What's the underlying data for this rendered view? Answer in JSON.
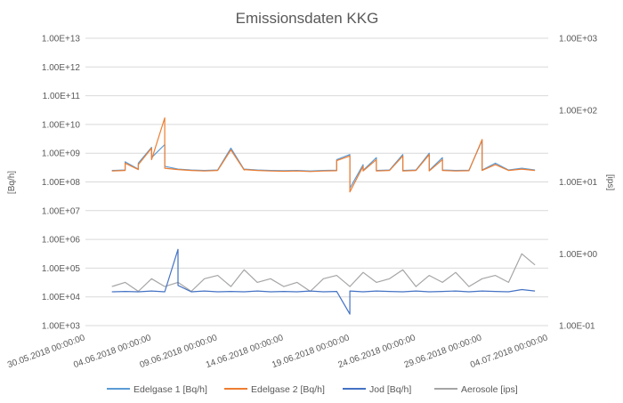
{
  "chart_data": {
    "type": "line",
    "title": "Emissionsdaten KKG",
    "ylabel": "[Bq/h]",
    "y2label": "[ips]",
    "yscale": "log",
    "y2scale": "log",
    "ylim": [
      1000,
      10000000000000
    ],
    "y2lim": [
      0.1,
      1000
    ],
    "y_ticks": [
      "1.00E+03",
      "1.00E+04",
      "1.00E+05",
      "1.00E+06",
      "1.00E+07",
      "1.00E+08",
      "1.00E+09",
      "1.00E+10",
      "1.00E+11",
      "1.00E+12",
      "1.00E+13"
    ],
    "y2_ticks": [
      "1.00E-01",
      "1.00E+00",
      "1.00E+01",
      "1.00E+02",
      "1.00E+03"
    ],
    "x_ticks": [
      "30.05.2018 00:00:00",
      "04.06.2018 00:00:00",
      "09.06.2018 00:00:00",
      "14.06.2018 00:00:00",
      "19.06.2018 00:00:00",
      "24.06.2018 00:00:00",
      "29.06.2018 00:00:00",
      "04.07.2018 00:00:00"
    ],
    "xlim": [
      "2018-05-30",
      "2018-07-04"
    ],
    "grid": "horizontal",
    "legend": "bottom",
    "series": [
      {
        "name": "Edelgase 1 [Bq/h]",
        "axis": "left",
        "color": "#5b9bd5",
        "x": [
          "2018-06-01",
          "2018-06-02",
          "2018-06-02",
          "2018-06-03",
          "2018-06-03",
          "2018-06-04",
          "2018-06-04",
          "2018-06-05",
          "2018-06-05",
          "2018-06-06",
          "2018-06-07",
          "2018-06-08",
          "2018-06-09",
          "2018-06-10",
          "2018-06-11",
          "2018-06-11",
          "2018-06-12",
          "2018-06-13",
          "2018-06-14",
          "2018-06-15",
          "2018-06-16",
          "2018-06-17",
          "2018-06-18",
          "2018-06-18",
          "2018-06-19",
          "2018-06-19",
          "2018-06-20",
          "2018-06-20",
          "2018-06-21",
          "2018-06-21",
          "2018-06-22",
          "2018-06-23",
          "2018-06-23",
          "2018-06-24",
          "2018-06-25",
          "2018-06-25",
          "2018-06-26",
          "2018-06-26",
          "2018-06-27",
          "2018-06-27",
          "2018-06-28",
          "2018-06-29",
          "2018-06-29",
          "2018-06-30",
          "2018-07-01",
          "2018-07-02",
          "2018-07-03"
        ],
        "y": [
          250000000,
          260000000,
          500000000,
          280000000,
          450000000,
          1600000000,
          700000000,
          2000000000,
          350000000,
          280000000,
          260000000,
          250000000,
          260000000,
          1500000000,
          270000000,
          280000000,
          260000000,
          250000000,
          245000000,
          250000000,
          240000000,
          250000000,
          255000000,
          600000000,
          900000000,
          60000000,
          400000000,
          250000000,
          700000000,
          250000000,
          260000000,
          900000000,
          250000000,
          260000000,
          1000000000,
          250000000,
          700000000,
          260000000,
          250000000,
          250000000,
          255000000,
          2800000000,
          260000000,
          450000000,
          260000000,
          300000000,
          260000000
        ]
      },
      {
        "name": "Edelgase 2 [Bq/h]",
        "axis": "left",
        "color": "#ed7d31",
        "x": [
          "2018-06-01",
          "2018-06-02",
          "2018-06-02",
          "2018-06-03",
          "2018-06-03",
          "2018-06-04",
          "2018-06-04",
          "2018-06-05",
          "2018-06-05",
          "2018-06-06",
          "2018-06-07",
          "2018-06-08",
          "2018-06-09",
          "2018-06-10",
          "2018-06-11",
          "2018-06-11",
          "2018-06-12",
          "2018-06-13",
          "2018-06-14",
          "2018-06-15",
          "2018-06-16",
          "2018-06-17",
          "2018-06-18",
          "2018-06-18",
          "2018-06-19",
          "2018-06-19",
          "2018-06-20",
          "2018-06-20",
          "2018-06-21",
          "2018-06-21",
          "2018-06-22",
          "2018-06-23",
          "2018-06-23",
          "2018-06-24",
          "2018-06-25",
          "2018-06-25",
          "2018-06-26",
          "2018-06-26",
          "2018-06-27",
          "2018-06-27",
          "2018-06-28",
          "2018-06-29",
          "2018-06-29",
          "2018-06-30",
          "2018-07-01",
          "2018-07-02",
          "2018-07-03"
        ],
        "y": [
          240000000,
          250000000,
          450000000,
          270000000,
          400000000,
          1500000000,
          600000000,
          17000000000,
          300000000,
          270000000,
          250000000,
          240000000,
          250000000,
          1300000000,
          260000000,
          270000000,
          250000000,
          240000000,
          235000000,
          240000000,
          230000000,
          240000000,
          245000000,
          550000000,
          800000000,
          45000000,
          350000000,
          240000000,
          600000000,
          240000000,
          250000000,
          800000000,
          240000000,
          250000000,
          900000000,
          240000000,
          600000000,
          250000000,
          240000000,
          240000000,
          245000000,
          3000000000,
          250000000,
          400000000,
          250000000,
          280000000,
          250000000
        ]
      },
      {
        "name": "Jod [Bq/h]",
        "axis": "left",
        "color": "#4472c4",
        "x": [
          "2018-06-01",
          "2018-06-02",
          "2018-06-03",
          "2018-06-04",
          "2018-06-05",
          "2018-06-06",
          "2018-06-06",
          "2018-06-07",
          "2018-06-08",
          "2018-06-09",
          "2018-06-10",
          "2018-06-11",
          "2018-06-12",
          "2018-06-13",
          "2018-06-14",
          "2018-06-15",
          "2018-06-16",
          "2018-06-17",
          "2018-06-18",
          "2018-06-19",
          "2018-06-19",
          "2018-06-20",
          "2018-06-21",
          "2018-06-22",
          "2018-06-23",
          "2018-06-24",
          "2018-06-25",
          "2018-06-26",
          "2018-06-27",
          "2018-06-28",
          "2018-06-29",
          "2018-06-30",
          "2018-07-01",
          "2018-07-02",
          "2018-07-03"
        ],
        "y": [
          15000,
          15500,
          15000,
          16000,
          15000,
          450000,
          25000,
          15000,
          16000,
          15000,
          15500,
          15000,
          16000,
          15000,
          15500,
          15000,
          16000,
          15000,
          15500,
          2500,
          16000,
          15000,
          16000,
          15500,
          15000,
          16000,
          15000,
          15500,
          16000,
          15000,
          16000,
          15500,
          15000,
          18000,
          16000
        ]
      },
      {
        "name": "Aerosole [ips]",
        "axis": "right",
        "color": "#a5a5a5",
        "x": [
          "2018-06-01",
          "2018-06-02",
          "2018-06-03",
          "2018-06-04",
          "2018-06-05",
          "2018-06-06",
          "2018-06-07",
          "2018-06-08",
          "2018-06-09",
          "2018-06-10",
          "2018-06-11",
          "2018-06-12",
          "2018-06-13",
          "2018-06-14",
          "2018-06-15",
          "2018-06-16",
          "2018-06-17",
          "2018-06-18",
          "2018-06-19",
          "2018-06-20",
          "2018-06-21",
          "2018-06-22",
          "2018-06-23",
          "2018-06-24",
          "2018-06-25",
          "2018-06-26",
          "2018-06-27",
          "2018-06-28",
          "2018-06-29",
          "2018-06-30",
          "2018-07-01",
          "2018-07-02",
          "2018-07-03"
        ],
        "y": [
          0.35,
          0.4,
          0.3,
          0.45,
          0.35,
          0.4,
          0.3,
          0.45,
          0.5,
          0.35,
          0.6,
          0.4,
          0.45,
          0.35,
          0.4,
          0.3,
          0.45,
          0.5,
          0.35,
          0.55,
          0.4,
          0.45,
          0.6,
          0.35,
          0.5,
          0.4,
          0.55,
          0.35,
          0.45,
          0.5,
          0.4,
          1.0,
          0.7
        ]
      }
    ]
  }
}
